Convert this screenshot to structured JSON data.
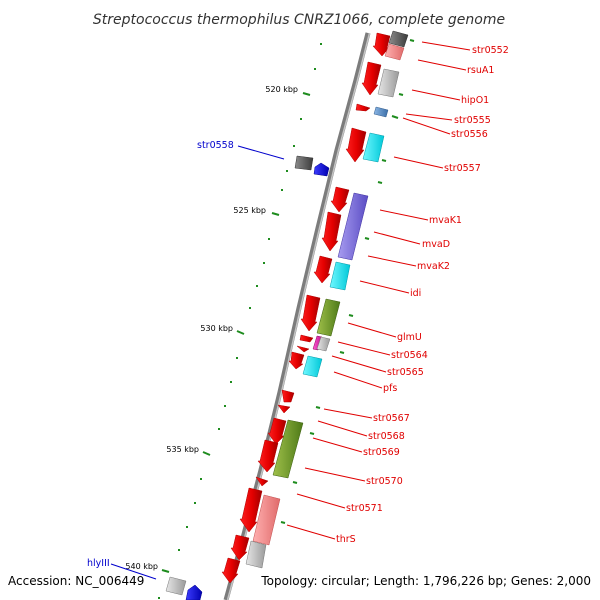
{
  "title": "Streptococcus thermophilus CNRZ1066, complete genome",
  "footer": {
    "accession": "Accession: NC_006449",
    "topology": "Topology: circular; Length: 1,796,226 bp; Genes: 2,000"
  },
  "scale_labels": [
    "520 kbp",
    "525 kbp",
    "530 kbp",
    "535 kbp",
    "540 kbp"
  ],
  "colors": {
    "gene_label": "#e00000",
    "feature_label": "#0000cc",
    "forward_gene": "#ff0000",
    "tick": "#1e8c1e"
  },
  "gene_labels": [
    "str0552",
    "rsuA1",
    "hipO1",
    "str0555",
    "str0556",
    "str0557",
    "mvaK1",
    "mvaD",
    "mvaK2",
    "idi",
    "glmU",
    "str0564",
    "str0565",
    "pfs",
    "str0567",
    "str0568",
    "str0569",
    "str0570",
    "str0571",
    "thrS"
  ],
  "feature_labels": [
    "str0558",
    "hlyIII"
  ]
}
